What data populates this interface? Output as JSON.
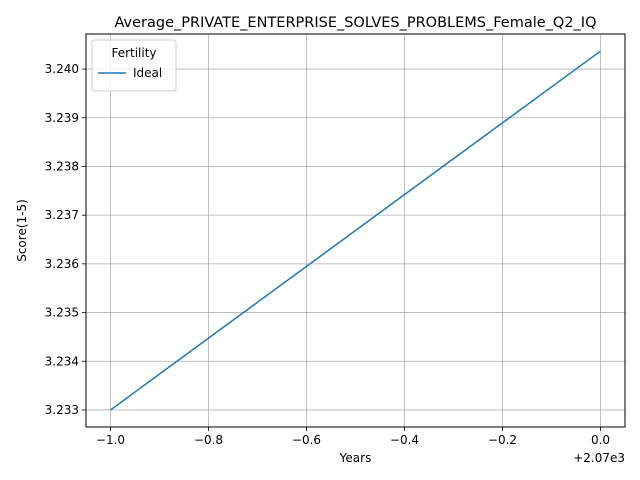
{
  "chart_data": {
    "type": "line",
    "title": "Average_PRIVATE_ENTERPRISE_SOLVES_PROBLEMS_Female_Q2_IQ",
    "xlabel": "Years",
    "ylabel": "Score(1-5)",
    "x_offset_label": "+2.07e3",
    "xlim": [
      -1.05,
      0.05
    ],
    "ylim": [
      3.23265,
      3.24072
    ],
    "x_ticks": [
      -1.0,
      -0.8,
      -0.6,
      -0.4,
      -0.2,
      0.0
    ],
    "x_tick_labels": [
      "−1.0",
      "−0.8",
      "−0.6",
      "−0.4",
      "−0.2",
      "0.0"
    ],
    "y_ticks": [
      3.233,
      3.234,
      3.235,
      3.236,
      3.237,
      3.238,
      3.239,
      3.24
    ],
    "y_tick_labels": [
      "3.233",
      "3.234",
      "3.235",
      "3.236",
      "3.237",
      "3.238",
      "3.239",
      "3.240"
    ],
    "grid": true,
    "legend": {
      "title": "Fertility",
      "placement": "top-left"
    },
    "series": [
      {
        "name": "Ideal",
        "color": "#1f77b4",
        "x": [
          -1.0,
          0.0
        ],
        "y": [
          3.233,
          3.24037
        ]
      }
    ]
  }
}
